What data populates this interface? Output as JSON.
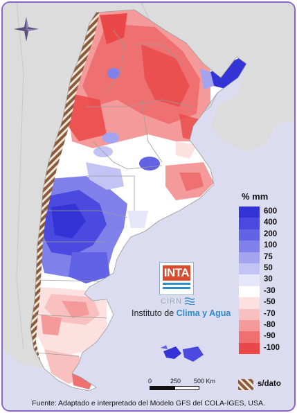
{
  "legend": {
    "title": "% mm",
    "entries": [
      {
        "label": "600",
        "color": "#3333d6"
      },
      {
        "label": "400",
        "color": "#4a4ae0"
      },
      {
        "label": "200",
        "color": "#6262e4"
      },
      {
        "label": "100",
        "color": "#8080ea"
      },
      {
        "label": "75",
        "color": "#a3a3ef"
      },
      {
        "label": "50",
        "color": "#c3c3f5"
      },
      {
        "label": "30",
        "color": "#e6e6fb"
      },
      {
        "label": "-30",
        "color": "#ffffff"
      },
      {
        "label": "-50",
        "color": "#fde1e1"
      },
      {
        "label": "-70",
        "color": "#f9c0c0"
      },
      {
        "label": "-80",
        "color": "#f59a9a"
      },
      {
        "label": "-90",
        "color": "#ef7070"
      },
      {
        "label": "-100",
        "color": "#ea4848"
      }
    ],
    "nodata_label": "s/dato"
  },
  "logo": {
    "abbr": "INTA",
    "sub": "CIRN",
    "instituto_prefix": "Instituto de",
    "instituto_highlight": "Clima y Agua"
  },
  "scale": {
    "zero": "0",
    "mid": "250",
    "end": "500 Km"
  },
  "footer": "Fuente: Adaptado e interpretado del Modelo GFS del COLA-IGES, USA.",
  "colors": {
    "frame": "#8a63c9",
    "sea": "#dcdcf0",
    "neighbors": "#dcdcdc",
    "andes": "#8b5a3c",
    "brand_blue": "#2f8cc8",
    "brand_red": "#d94b2b"
  }
}
